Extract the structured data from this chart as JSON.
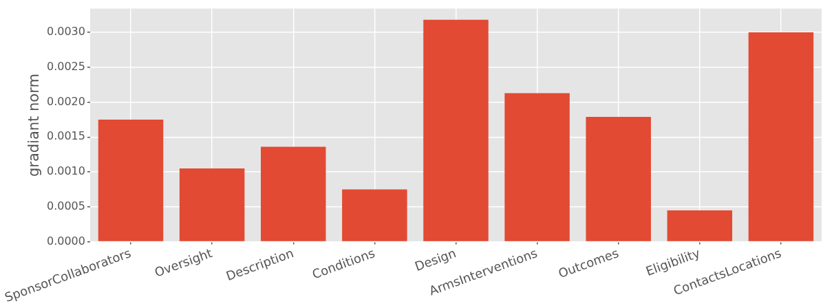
{
  "chart_data": {
    "type": "bar",
    "ylabel": "gradiant norm",
    "categories": [
      "SponsorCollaborators",
      "Oversight",
      "Description",
      "Conditions",
      "Design",
      "ArmsInterventions",
      "Outcomes",
      "Eligibility",
      "ContactsLocations"
    ],
    "values": [
      0.00175,
      0.00105,
      0.00136,
      0.00075,
      0.00318,
      0.00213,
      0.00179,
      0.00045,
      0.003
    ],
    "color": "#e24a33",
    "ylim": [
      0,
      0.00334
    ],
    "yticks": [
      {
        "value": 0,
        "label": "0.0000"
      },
      {
        "value": 0.0005,
        "label": "0.0005"
      },
      {
        "value": 0.001,
        "label": "0.0010"
      },
      {
        "value": 0.0015,
        "label": "0.0015"
      },
      {
        "value": 0.002,
        "label": "0.0020"
      },
      {
        "value": 0.0025,
        "label": "0.0025"
      },
      {
        "value": 0.003,
        "label": "0.0030"
      }
    ],
    "grid": true
  }
}
